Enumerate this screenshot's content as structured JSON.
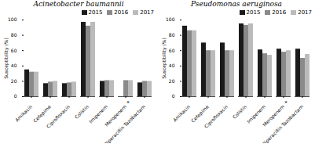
{
  "chart_data": [
    {
      "type": "bar",
      "title": "Acinetobacter baumannii",
      "ylabel": "Susceptibility (%)",
      "categories": [
        "Amikacin",
        "Cefepime",
        "Ciprofloxacin",
        "Colistin",
        "Imipenem",
        "Meropenem",
        "Piperacillin Tazobactam"
      ],
      "series": [
        {
          "name": "2015",
          "color": "#1a1a1a",
          "values": [
            35,
            17,
            17,
            97,
            20,
            0,
            18
          ]
        },
        {
          "name": "2016",
          "color": "#8a8a8a",
          "values": [
            32,
            19,
            18,
            92,
            21,
            21,
            20
          ]
        },
        {
          "name": "2017",
          "color": "#bbbbbb",
          "values": [
            32,
            20,
            19,
            97,
            21,
            21,
            20
          ]
        }
      ],
      "annotations": [
        {
          "text": "*",
          "x": "Meropenem"
        }
      ],
      "ylim": [
        0,
        100
      ],
      "yticks": [
        0,
        20,
        40,
        60,
        80,
        100
      ],
      "legend": "upper right"
    },
    {
      "type": "bar",
      "title": "Pseudomonas aeruginosa",
      "ylabel": "Susceptibility (%)",
      "categories": [
        "Amikacin",
        "Cefepime",
        "Ciprofloxacin",
        "Colistin",
        "Imipenem",
        "Meropenem",
        "Piperacillin Tazobactam"
      ],
      "series": [
        {
          "name": "2015",
          "color": "#1a1a1a",
          "values": [
            92,
            70,
            70,
            95,
            61,
            62,
            62
          ]
        },
        {
          "name": "2016",
          "color": "#8a8a8a",
          "values": [
            86,
            60,
            60,
            93,
            56,
            58,
            50
          ]
        },
        {
          "name": "2017",
          "color": "#bbbbbb",
          "values": [
            86,
            60,
            60,
            95,
            54,
            60,
            55
          ]
        }
      ],
      "annotations": [
        {
          "text": "*",
          "x": "Meropenem"
        }
      ],
      "ylim": [
        0,
        100
      ],
      "yticks": [
        0,
        20,
        40,
        60,
        80,
        100
      ],
      "legend": "upper right"
    }
  ]
}
